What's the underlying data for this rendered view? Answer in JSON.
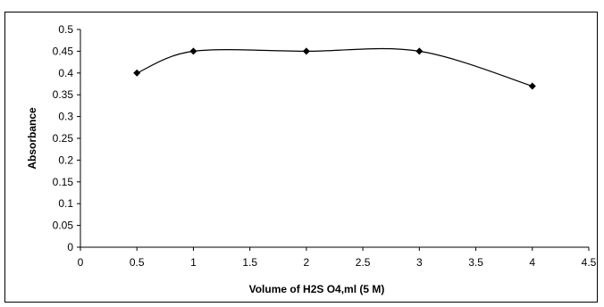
{
  "chart_data": {
    "type": "line",
    "title": "",
    "xlabel": "Volume of H2S O4,ml (5 M)",
    "ylabel": "Absorbance",
    "xlim": [
      0,
      4.5
    ],
    "ylim": [
      0,
      0.5
    ],
    "x_ticks": [
      "0",
      "0.5",
      "1",
      "1.5",
      "2",
      "2.5",
      "3",
      "3.5",
      "4",
      "4.5"
    ],
    "y_ticks": [
      "0",
      "0.05",
      "0.1",
      "0.15",
      "0.2",
      "0.25",
      "0.3",
      "0.35",
      "0.4",
      "0.45",
      "0.5"
    ],
    "grid": false,
    "legend": "none",
    "series": [
      {
        "x": [
          0.5,
          1,
          2,
          3,
          4
        ],
        "y": [
          0.4,
          0.45,
          0.45,
          0.45,
          0.37
        ],
        "line_color": "#000000",
        "marker": "diamond",
        "smoothed": true
      }
    ]
  }
}
